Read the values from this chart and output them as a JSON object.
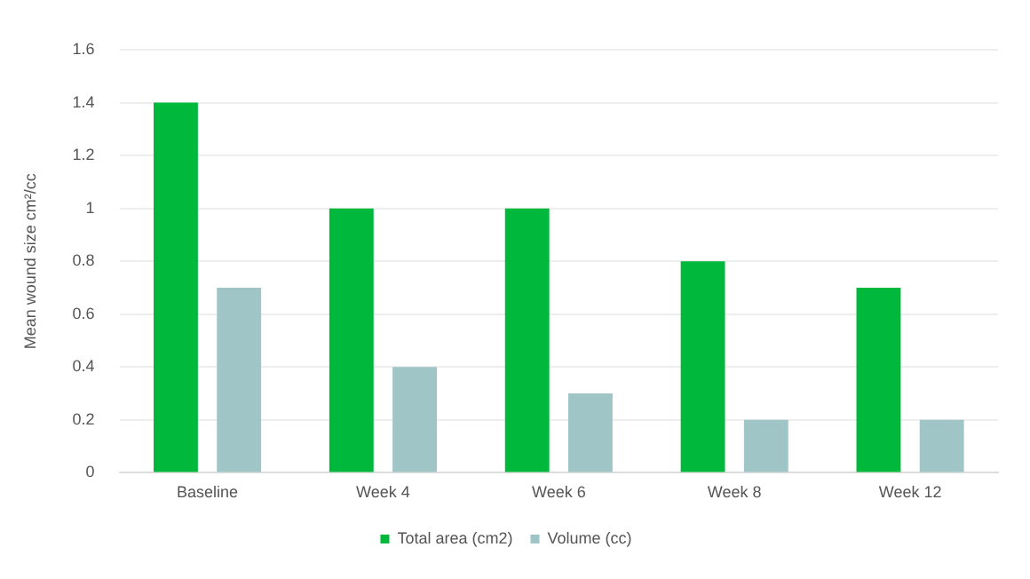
{
  "chart_data": {
    "type": "bar",
    "ylabel": "Mean wound size cm²/cc",
    "categories": [
      "Baseline",
      "Week 4",
      "Week 6",
      "Week 8",
      "Week 12"
    ],
    "series": [
      {
        "name": "Total area (cm2)",
        "color": "#00b93c",
        "values": [
          1.4,
          1,
          1,
          0.8,
          0.7
        ]
      },
      {
        "name": "Volume (cc)",
        "color": "#9fc5c6",
        "values": [
          0.7,
          0.4,
          0.3,
          0.2,
          0.2
        ]
      }
    ],
    "ylim": [
      0,
      1.6
    ],
    "yticks": [
      0,
      0.2,
      0.4,
      0.6,
      0.8,
      1,
      1.2,
      1.4,
      1.6
    ],
    "grid": "y",
    "legend": "bottom"
  }
}
